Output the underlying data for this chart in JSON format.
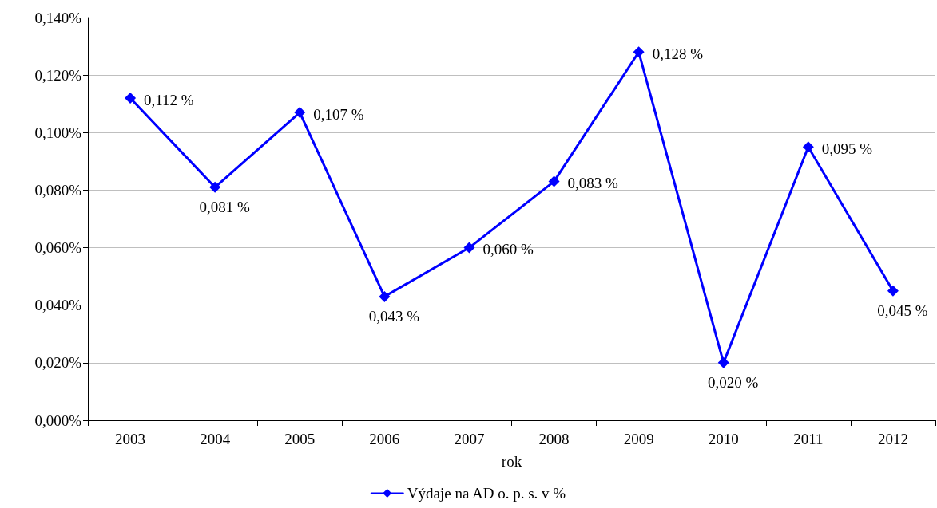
{
  "chart_data": {
    "type": "line",
    "xlabel": "rok",
    "categories": [
      "2003",
      "2004",
      "2005",
      "2006",
      "2007",
      "2008",
      "2009",
      "2010",
      "2011",
      "2012"
    ],
    "series": [
      {
        "name": "Výdaje na AD o. p. s. v %",
        "color": "#0000ff",
        "values": [
          0.112,
          0.081,
          0.107,
          0.043,
          0.06,
          0.083,
          0.128,
          0.02,
          0.095,
          0.045
        ],
        "value_labels": [
          "0,112 %",
          "0,081 %",
          "0,107 %",
          "0,043 %",
          "0,060 %",
          "0,083 %",
          "0,128 %",
          "0,020 %",
          "0,095 %",
          "0,045 %"
        ]
      }
    ],
    "ylim": [
      0,
      0.14
    ],
    "yticks": [
      {
        "value": 0,
        "label": "0,000%"
      },
      {
        "value": 0.02,
        "label": "0,020%"
      },
      {
        "value": 0.04,
        "label": "0,040%"
      },
      {
        "value": 0.06,
        "label": "0,060%"
      },
      {
        "value": 0.08,
        "label": "0,080%"
      },
      {
        "value": 0.1,
        "label": "0,100%"
      },
      {
        "value": 0.12,
        "label": "0,120%"
      },
      {
        "value": 0.14,
        "label": "0,140%"
      }
    ],
    "grid": "y",
    "legend": "bottom",
    "marker": "diamond",
    "line_style": "solid"
  }
}
